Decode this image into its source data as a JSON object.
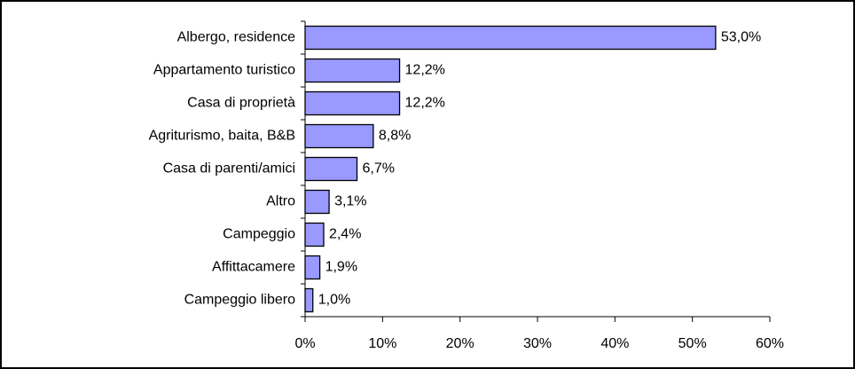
{
  "chart_data": {
    "type": "bar",
    "orientation": "horizontal",
    "categories": [
      "Albergo, residence",
      "Appartamento turistico",
      "Casa di proprietà",
      "Agriturismo, baita, B&B",
      "Casa di parenti/amici",
      "Altro",
      "Campeggio",
      "Affittacamere",
      "Campeggio libero"
    ],
    "values": [
      53.0,
      12.2,
      12.2,
      8.8,
      6.7,
      3.1,
      2.4,
      1.9,
      1.0
    ],
    "value_labels": [
      "53,0%",
      "12,2%",
      "12,2%",
      "8,8%",
      "6,7%",
      "3,1%",
      "2,4%",
      "1,9%",
      "1,0%"
    ],
    "color": "#9999ff",
    "xlim": [
      0,
      60
    ],
    "xticks": [
      {
        "value": 0,
        "label": "0%"
      },
      {
        "value": 10,
        "label": "10%"
      },
      {
        "value": 20,
        "label": "20%"
      },
      {
        "value": 30,
        "label": "30%"
      },
      {
        "value": 40,
        "label": "40%"
      },
      {
        "value": 50,
        "label": "50%"
      },
      {
        "value": 60,
        "label": "60%"
      }
    ],
    "grid": false
  }
}
